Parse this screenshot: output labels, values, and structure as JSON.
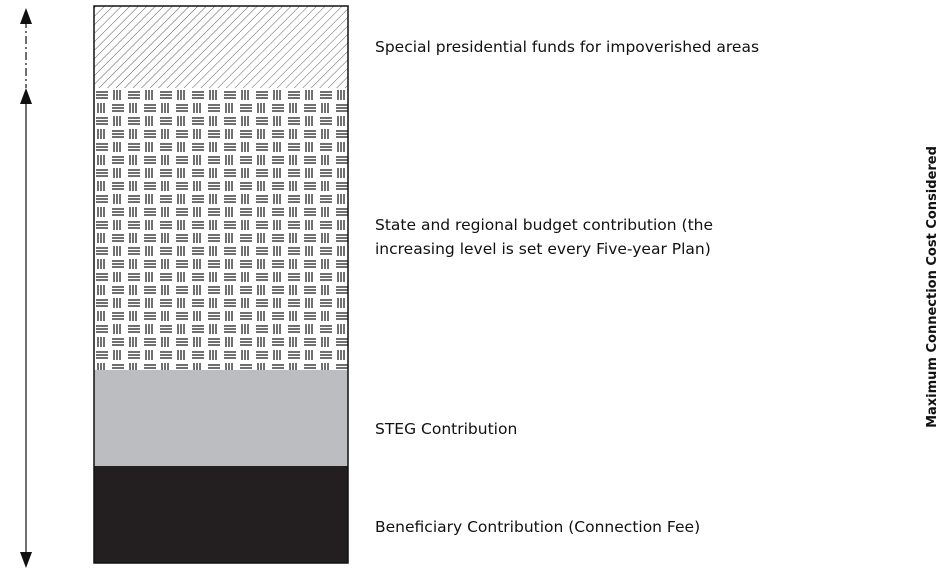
{
  "layers": [
    {
      "label": [
        "Special presidential funds for impoverished areas"
      ]
    },
    {
      "label": [
        "State and regional budget contribution (the",
        "increasing level is set every Five-year Plan)"
      ]
    },
    {
      "label": [
        "STEG Contribution"
      ]
    },
    {
      "label": [
        "Beneficiary Contribution (Connection Fee)"
      ]
    }
  ],
  "side_label": "Maximum Connection Cost Considered"
}
